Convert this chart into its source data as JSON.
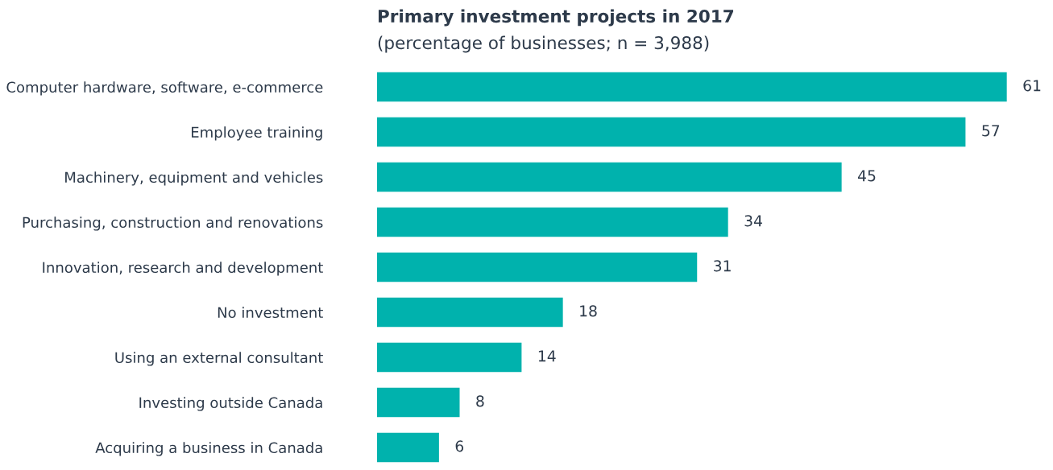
{
  "chart_data": {
    "type": "bar",
    "orientation": "horizontal",
    "title": "Primary investment projects in 2017",
    "subtitle": "(percentage of businesses; n = 3,988)",
    "categories": [
      "Computer hardware, software, e-commerce",
      "Employee training",
      "Machinery, equipment and vehicles",
      "Purchasing, construction and renovations",
      "Innovation, research and development",
      "No investment",
      "Using an external consultant",
      "Investing outside Canada",
      "Acquiring a business in Canada"
    ],
    "values": [
      61,
      57,
      45,
      34,
      31,
      18,
      14,
      8,
      6
    ],
    "color": "#00b2ad",
    "data_labels": true,
    "grid": false,
    "legend": false
  }
}
